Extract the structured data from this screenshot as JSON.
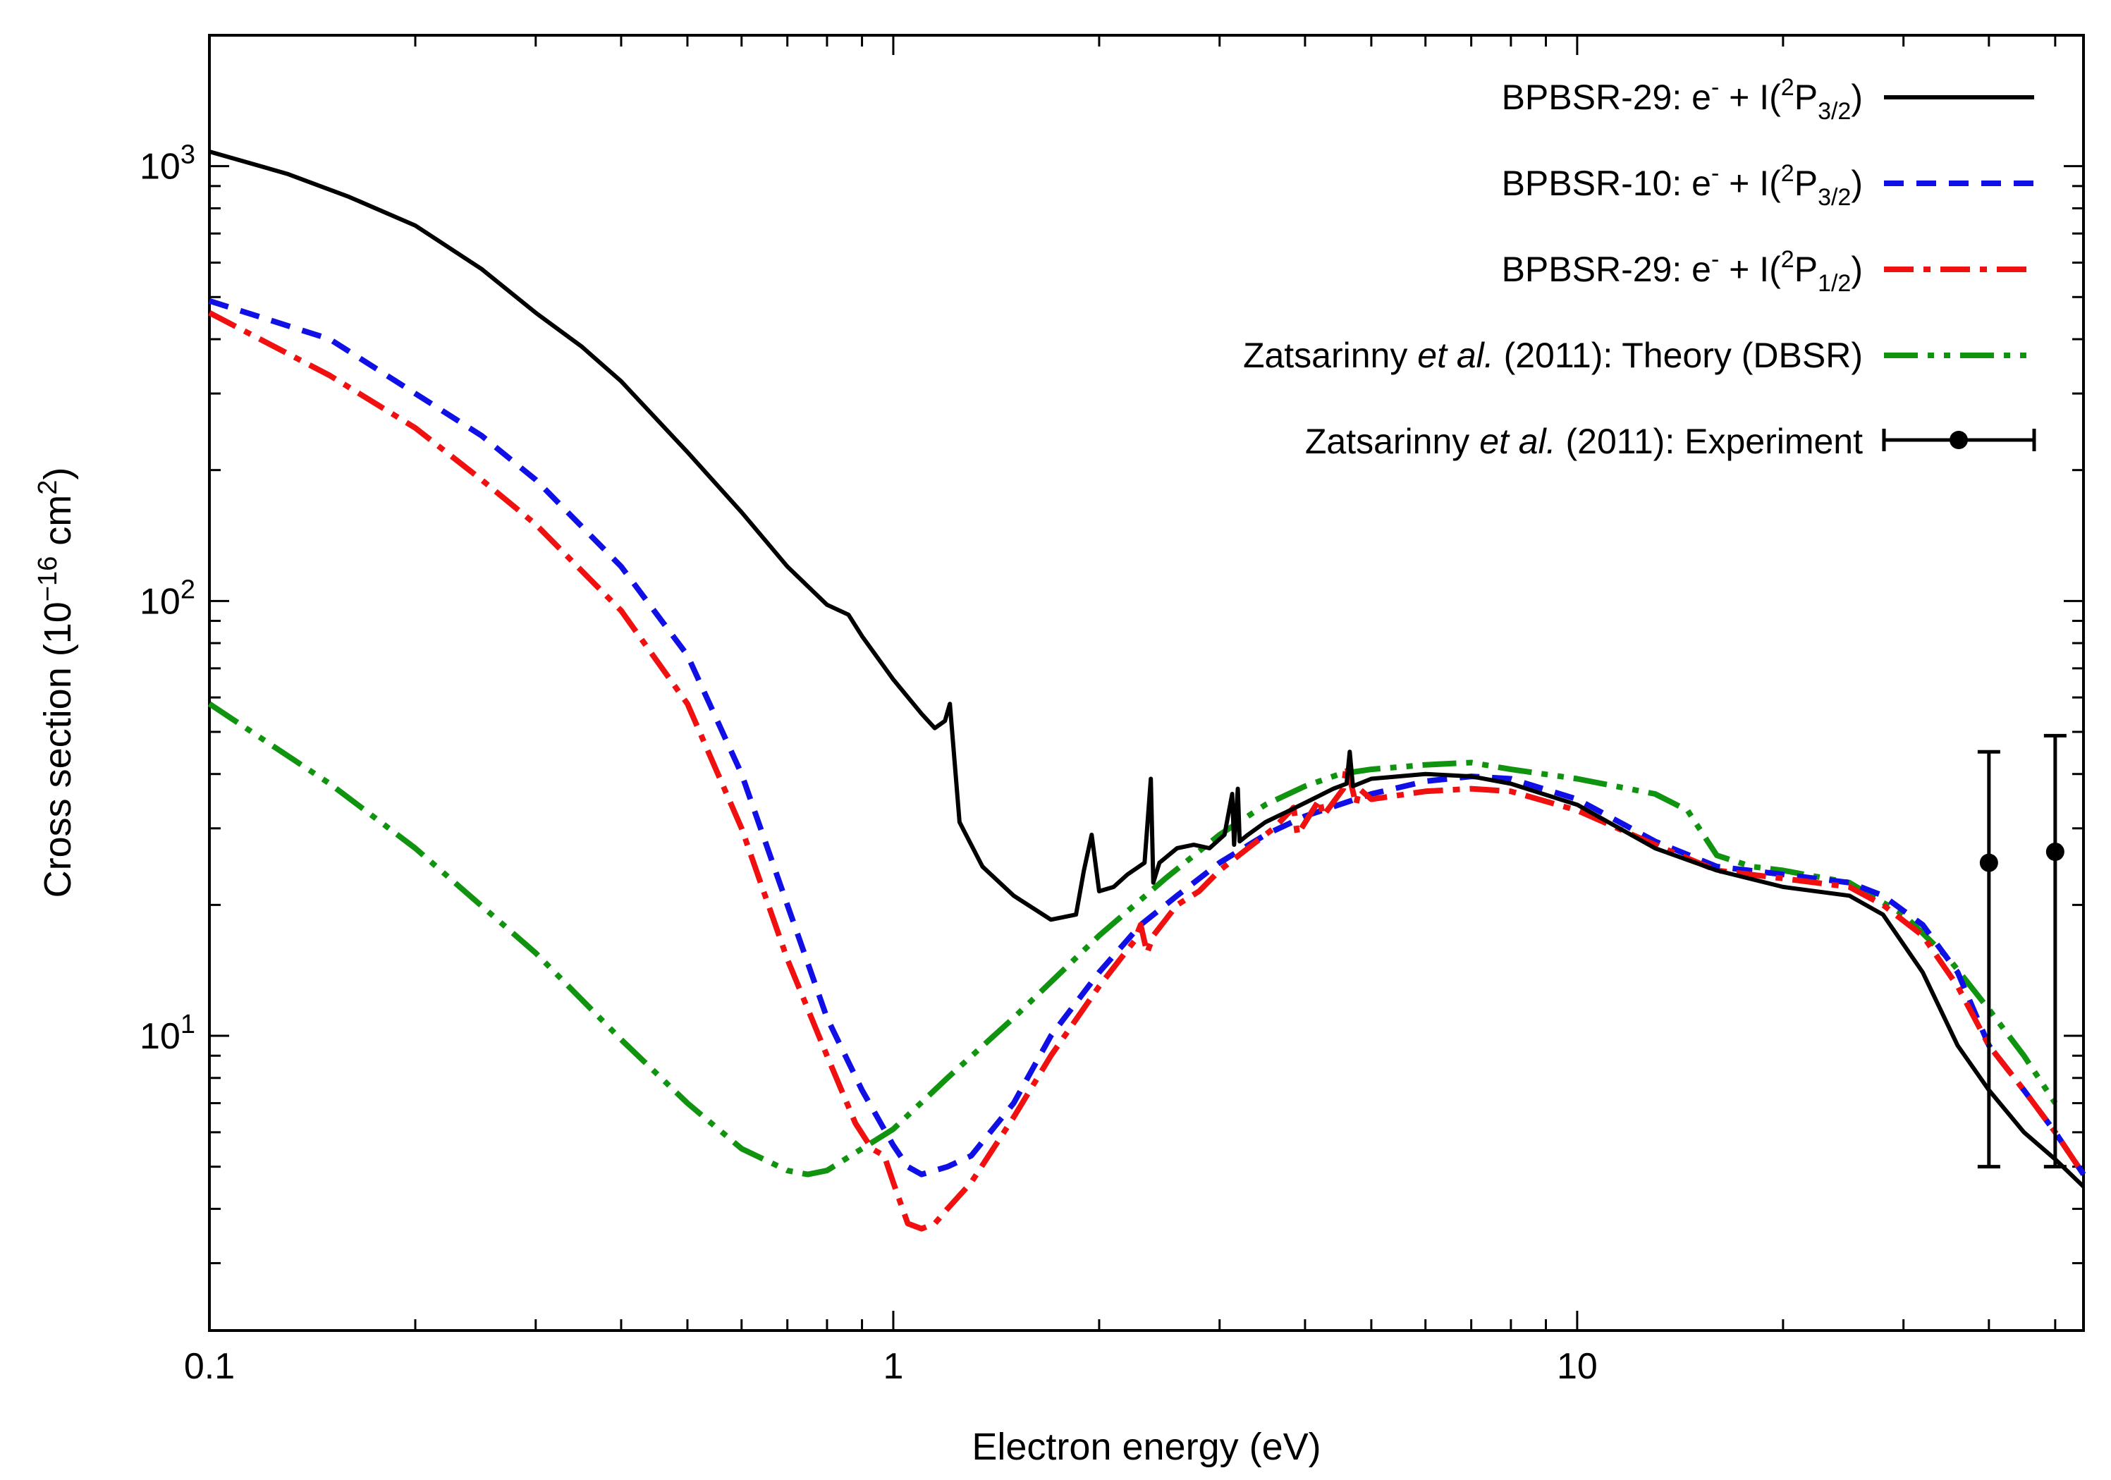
{
  "chart_data": {
    "type": "line",
    "title": "",
    "xlabel": "Electron energy (eV)",
    "ylabel": {
      "prefix": "Cross section (10",
      "exponent": "−16",
      "middle": " cm",
      "exponent2": "2",
      "suffix": ")"
    },
    "xscale": "log",
    "yscale": "log",
    "xlim": [
      0.1,
      55
    ],
    "ylim": [
      2.1,
      2000
    ],
    "grid": false,
    "legend_position": "top-right",
    "x_ticks": [
      {
        "value": 0.1,
        "label": "0.1"
      },
      {
        "value": 1,
        "label": "1"
      },
      {
        "value": 10,
        "label": "10"
      }
    ],
    "y_ticks": [
      {
        "value": 10,
        "base": "10",
        "exp": "1"
      },
      {
        "value": 100,
        "base": "10",
        "exp": "2"
      },
      {
        "value": 1000,
        "base": "10",
        "exp": "3"
      }
    ],
    "series": [
      {
        "name": "BPBSR-29: e⁻ + I(²P₃/₂)",
        "label_parts": {
          "pre": "BPBSR-29: e",
          "sup1": "-",
          "mid": " + I(",
          "sup2": "2",
          "p": "P",
          "sub": "3/2",
          "end": ")"
        },
        "color": "#000000",
        "style": "solid",
        "x": [
          0.1,
          0.13,
          0.16,
          0.2,
          0.25,
          0.3,
          0.35,
          0.4,
          0.5,
          0.6,
          0.7,
          0.8,
          0.86,
          0.9,
          1.0,
          1.1,
          1.15,
          1.19,
          1.21,
          1.25,
          1.35,
          1.5,
          1.7,
          1.85,
          1.9,
          1.95,
          2.0,
          2.1,
          2.2,
          2.33,
          2.38,
          2.4,
          2.45,
          2.6,
          2.75,
          2.9,
          3.05,
          3.13,
          3.15,
          3.19,
          3.21,
          3.3,
          3.5,
          3.8,
          4.1,
          4.4,
          4.6,
          4.65,
          4.7,
          5.0,
          6.0,
          7.0,
          8.0,
          10.0,
          13.0,
          16.0,
          20.0,
          25.0,
          28.0,
          32.0,
          36.0,
          40.0,
          45.0,
          50.0,
          55.0
        ],
        "y": [
          1080,
          960,
          850,
          730,
          580,
          460,
          385,
          320,
          220,
          160,
          120,
          98,
          93,
          83,
          66,
          55,
          51,
          53,
          58,
          31,
          24.5,
          21,
          18.5,
          19,
          24,
          29,
          21.5,
          22,
          23.5,
          25,
          39,
          22.5,
          25,
          27,
          27.5,
          27,
          29,
          36,
          27.5,
          37,
          28,
          29,
          31,
          33,
          35,
          37,
          38,
          45,
          37.5,
          39,
          40,
          39.5,
          38,
          34,
          27,
          24,
          22,
          21,
          19,
          14,
          9.5,
          7.5,
          6,
          5.2,
          4.5
        ]
      },
      {
        "name": "BPBSR-10: e⁻ + I(²P₃/₂)",
        "label_parts": {
          "pre": "BPBSR-10: e",
          "sup1": "-",
          "mid": " + I(",
          "sup2": "2",
          "p": "P",
          "sub": "3/2",
          "end": ")"
        },
        "color": "#1010e6",
        "style": "dashed",
        "x": [
          0.1,
          0.15,
          0.2,
          0.25,
          0.3,
          0.4,
          0.5,
          0.6,
          0.7,
          0.8,
          0.9,
          1.0,
          1.05,
          1.1,
          1.2,
          1.3,
          1.5,
          1.7,
          2.0,
          2.3,
          2.6,
          3.0,
          3.5,
          4.0,
          5.0,
          6.0,
          7.0,
          8.0,
          10.0,
          13.0,
          16.0,
          20.0,
          25.0,
          28.0,
          32.0,
          36.0,
          40.0,
          45.0,
          50.0,
          55.0
        ],
        "y": [
          490,
          400,
          300,
          240,
          190,
          120,
          75,
          40,
          20,
          11,
          7.5,
          5.6,
          5.0,
          4.8,
          5.0,
          5.3,
          7.0,
          10.0,
          14.0,
          18.0,
          21.0,
          25.0,
          29.0,
          32.0,
          36.0,
          38.5,
          39.5,
          39.0,
          35.0,
          28.0,
          24.5,
          23.5,
          22.5,
          21.0,
          18.0,
          14.0,
          9.5,
          7.5,
          6.0,
          4.8
        ]
      },
      {
        "name": "BPBSR-29: e⁻ + I(²P₁/₂)",
        "label_parts": {
          "pre": "BPBSR-29: e",
          "sup1": "-",
          "mid": " + I(",
          "sup2": "2",
          "p": "P",
          "sub": "1/2",
          "end": ")"
        },
        "color": "#f01010",
        "style": "dashdot",
        "x": [
          0.1,
          0.15,
          0.2,
          0.25,
          0.3,
          0.4,
          0.5,
          0.6,
          0.7,
          0.8,
          0.88,
          0.93,
          0.97,
          1.0,
          1.05,
          1.1,
          1.15,
          1.2,
          1.3,
          1.5,
          1.7,
          2.0,
          2.25,
          2.3,
          2.35,
          2.4,
          2.6,
          2.8,
          3.0,
          3.3,
          3.6,
          3.85,
          3.9,
          4.2,
          4.25,
          4.55,
          4.6,
          4.75,
          4.8,
          5.0,
          6.0,
          7.0,
          8.0,
          10.0,
          13.0,
          16.0,
          20.0,
          25.0,
          28.0,
          32.0,
          36.0,
          40.0,
          45.0,
          50.0,
          55.0
        ],
        "y": [
          460,
          330,
          250,
          190,
          150,
          95,
          58,
          30,
          15,
          9.0,
          6.3,
          5.5,
          5.3,
          4.6,
          3.7,
          3.6,
          3.7,
          4.0,
          4.6,
          6.5,
          9.0,
          13.0,
          16.5,
          18.0,
          15.5,
          17.0,
          20.0,
          21.5,
          24.0,
          27.0,
          30.0,
          33.5,
          29.0,
          35.0,
          32.0,
          37.0,
          42.0,
          34.0,
          37.0,
          35.0,
          36.5,
          37.0,
          36.5,
          33.0,
          27.5,
          24.0,
          23.0,
          22.0,
          20.0,
          17.0,
          13.0,
          9.5,
          7.5,
          6.0,
          4.8
        ]
      },
      {
        "name": "Zatsarinny et al. (2011): Theory (DBSR)",
        "label_parts": {
          "pre": "Zatsarinny ",
          "ital": "et al.",
          "post": " (2011): Theory (DBSR)"
        },
        "color": "#109410",
        "style": "dashdotdot",
        "x": [
          0.1,
          0.15,
          0.2,
          0.3,
          0.4,
          0.5,
          0.6,
          0.7,
          0.75,
          0.8,
          0.9,
          1.0,
          1.2,
          1.5,
          2.0,
          2.5,
          3.0,
          3.5,
          4.0,
          4.5,
          5.0,
          6.0,
          7.0,
          8.0,
          10.0,
          13.0,
          14.5,
          16.0,
          18.0,
          20.0,
          25.0,
          30.0,
          35.0,
          40.0,
          45.0,
          50.0
        ],
        "y": [
          58,
          38,
          27,
          15.5,
          9.8,
          7.0,
          5.5,
          4.9,
          4.8,
          4.9,
          5.5,
          6.1,
          8.0,
          11.0,
          17.0,
          23.0,
          29.0,
          34.0,
          37.5,
          40.0,
          41.0,
          42.0,
          42.5,
          41.0,
          39.0,
          36.0,
          33.0,
          26.0,
          24.5,
          24.0,
          22.5,
          19.0,
          15.0,
          11.5,
          9.0,
          7.0
        ]
      }
    ],
    "experiment": {
      "name": "Zatsarinny et al. (2011): Experiment",
      "label_parts": {
        "pre": "Zatsarinny ",
        "ital": "et al.",
        "post": " (2011): Experiment"
      },
      "color": "#000000",
      "points": [
        {
          "x": 40,
          "y": 25,
          "y_low": 5,
          "y_high": 45
        },
        {
          "x": 50,
          "y": 26.5,
          "y_low": 5,
          "y_high": 49
        }
      ]
    }
  }
}
